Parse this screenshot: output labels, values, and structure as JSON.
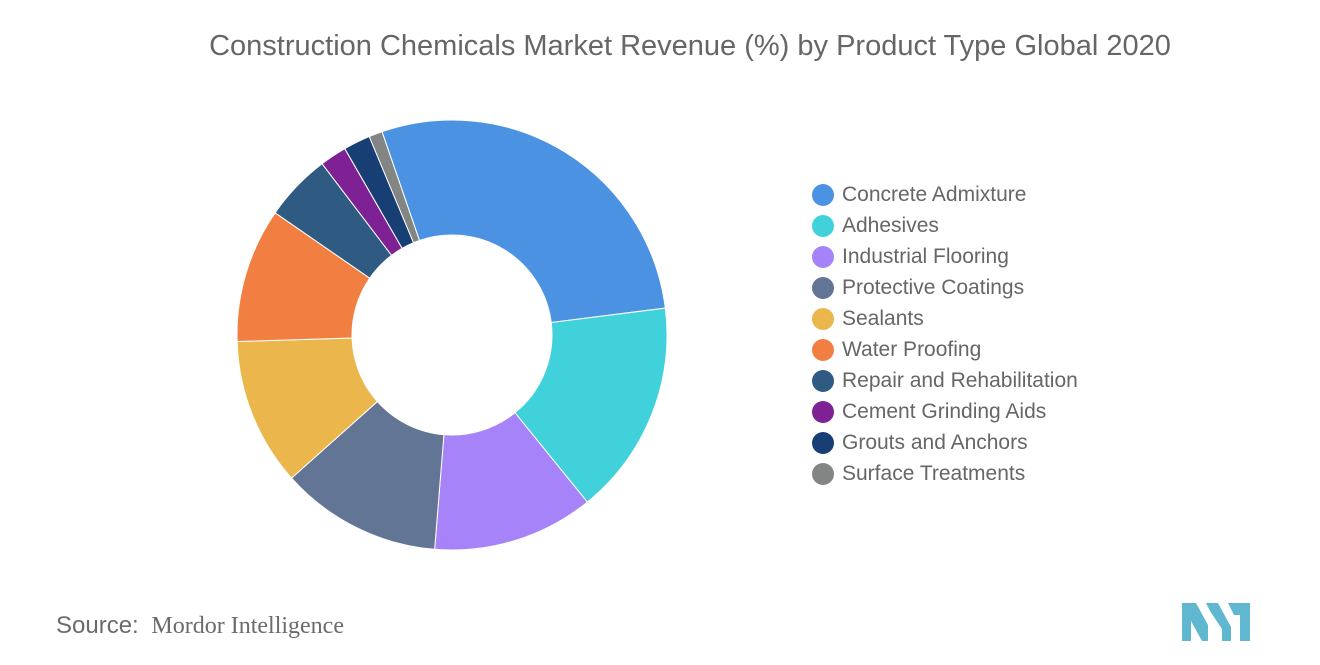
{
  "title": "Construction Chemicals Market Revenue (%) by Product Type Global 2020",
  "source": {
    "label": "Source:",
    "name": "Mordor Intelligence"
  },
  "logo": {
    "icon": "mordor-intelligence-logo",
    "color": "#5fb8cf"
  },
  "chart_data": {
    "type": "pie",
    "style": "donut",
    "unit": "%",
    "legend_position": "right",
    "start_angle_deg": 90,
    "direction": "clockwise",
    "categories": [
      "Concrete Admixture",
      "Adhesives",
      "Industrial Flooring",
      "Protective Coatings",
      "Sealants",
      "Water Proofing",
      "Repair and Rehabilitation",
      "Cement Grinding Aids",
      "Grouts and Anchors",
      "Surface Treatments"
    ],
    "values": [
      28.0,
      16.0,
      12.0,
      12.0,
      11.0,
      10.0,
      5.0,
      2.0,
      2.0,
      1.0
    ],
    "colors": [
      "#4c92e3",
      "#41d1da",
      "#a683f8",
      "#637595",
      "#ebb64c",
      "#f27f42",
      "#2f5b82",
      "#7d2195",
      "#183f73",
      "#828583"
    ]
  }
}
